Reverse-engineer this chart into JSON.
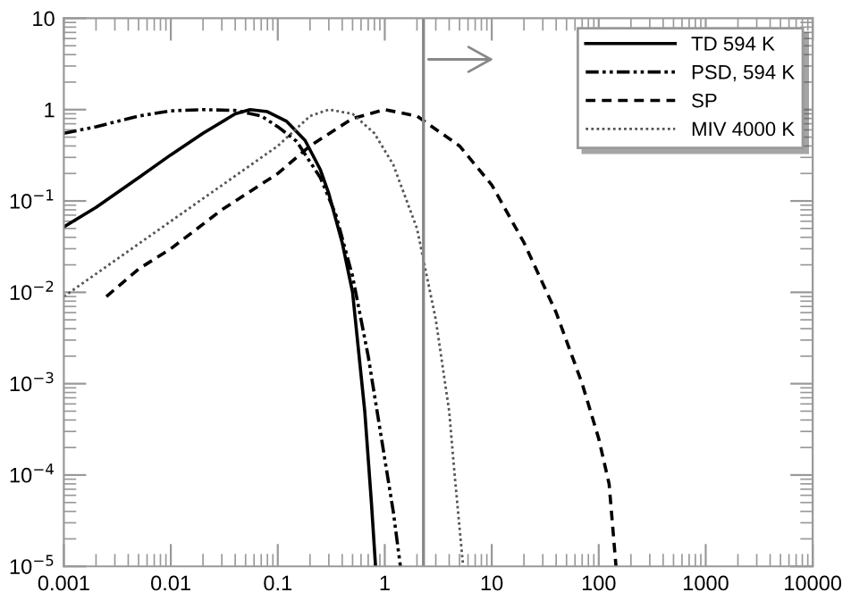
{
  "chart_data": {
    "type": "line",
    "log": "xy",
    "xlim": [
      0.001,
      10000
    ],
    "ylim": [
      1e-05,
      10
    ],
    "xticks": [
      0.001,
      0.01,
      0.1,
      1,
      10,
      100,
      1000,
      10000
    ],
    "yticks": [
      {
        "value": 1e-05,
        "label": "10$^{−5}$"
      },
      {
        "value": 0.0001,
        "label": "10$^{−4}$"
      },
      {
        "value": 0.001,
        "label": "10$^{−3}$"
      },
      {
        "value": 0.01,
        "label": "10$^{−2}$"
      },
      {
        "value": 0.1,
        "label": "10$^{−1}$"
      },
      1,
      10
    ],
    "grid": false,
    "legend": "top right",
    "ref_lines": [
      {
        "axis": "x",
        "value": 2.3,
        "color": "#888888",
        "line_style": "solid"
      }
    ],
    "series": [
      {
        "name": "TD 594 K",
        "color": "#000000",
        "line_style": "solid",
        "x": [
          0.001,
          0.002,
          0.005,
          0.01,
          0.02,
          0.04,
          0.055,
          0.08,
          0.12,
          0.18,
          0.25,
          0.3,
          0.4,
          0.5,
          0.65,
          0.75,
          0.82
        ],
        "values": [
          0.052,
          0.085,
          0.18,
          0.32,
          0.55,
          0.9,
          1.0,
          0.95,
          0.75,
          0.46,
          0.22,
          0.12,
          0.035,
          0.01,
          0.0005,
          5e-05,
          1e-05
        ]
      },
      {
        "name": "PSD, 594 K",
        "color": "#000000",
        "line_style": "dashdot",
        "x": [
          0.001,
          0.002,
          0.005,
          0.01,
          0.02,
          0.04,
          0.07,
          0.1,
          0.15,
          0.25,
          0.35,
          0.5,
          0.7,
          1.0,
          1.2,
          1.4
        ],
        "values": [
          0.55,
          0.65,
          0.85,
          0.97,
          1.0,
          0.98,
          0.85,
          0.65,
          0.45,
          0.18,
          0.07,
          0.015,
          0.002,
          0.00015,
          4e-05,
          1e-05
        ]
      },
      {
        "name": "SP",
        "color": "#000000",
        "line_style": "dashed",
        "x": [
          0.0025,
          0.005,
          0.01,
          0.03,
          0.1,
          0.2,
          0.5,
          1,
          2,
          5,
          10,
          20,
          40,
          70,
          100,
          125,
          145
        ],
        "values": [
          0.009,
          0.018,
          0.03,
          0.08,
          0.2,
          0.4,
          0.8,
          1.0,
          0.85,
          0.4,
          0.15,
          0.035,
          0.006,
          0.001,
          0.00025,
          8e-05,
          1e-05
        ]
      },
      {
        "name": "MIV 4000 K",
        "color": "#555555",
        "line_style": "dotted",
        "x": [
          0.001,
          0.01,
          0.1,
          0.2,
          0.3,
          0.5,
          0.8,
          1.2,
          2,
          3,
          4,
          4.5,
          5.4
        ],
        "values": [
          0.009,
          0.06,
          0.4,
          0.85,
          1.0,
          0.9,
          0.55,
          0.25,
          0.05,
          0.005,
          0.0005,
          0.0001,
          1e-05
        ]
      }
    ]
  }
}
